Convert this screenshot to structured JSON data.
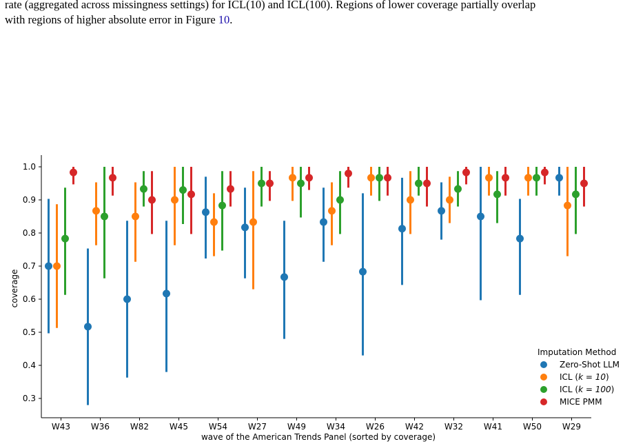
{
  "caption": {
    "line1": "rate (aggregated across missingness settings) for ICL(10) and ICL(100). Regions of lower coverage partially overlap",
    "line2_before": "with regions of higher absolute error in Figure ",
    "figure_ref": "10",
    "line2_after": "."
  },
  "chart_data": {
    "type": "scatter",
    "subtype": "point-with-errorbars",
    "xlabel": "wave of the American Trends Panel (sorted by coverage)",
    "ylabel": "coverage",
    "ylim": [
      0.25,
      1.035
    ],
    "yticks": [
      0.3,
      0.4,
      0.5,
      0.6,
      0.7,
      0.8,
      0.9,
      1.0
    ],
    "ytick_labels": [
      "0.3",
      "0.4",
      "0.5",
      "0.6",
      "0.7",
      "0.8",
      "0.9",
      "1.0"
    ],
    "categories": [
      "W43",
      "W36",
      "W82",
      "W45",
      "W54",
      "W27",
      "W49",
      "W34",
      "W26",
      "W42",
      "W32",
      "W41",
      "W50",
      "W29"
    ],
    "legend": {
      "title": "Imputation Method",
      "position": "lower-right",
      "entries": [
        {
          "label": "Zero-Shot LLM",
          "math": "",
          "after": ""
        },
        {
          "label": "ICL (",
          "math": "k = 10",
          "after": ")"
        },
        {
          "label": "ICL (",
          "math": "k = 100",
          "after": ")"
        },
        {
          "label": "MICE PMM",
          "math": "",
          "after": ""
        }
      ]
    },
    "series": [
      {
        "name": "Zero-Shot LLM",
        "color": "#1f77b4",
        "values": [
          0.7,
          0.517,
          0.6,
          0.617,
          0.863,
          0.817,
          0.667,
          0.833,
          0.683,
          0.813,
          0.867,
          0.85,
          0.783,
          0.967
        ],
        "lower": [
          0.497,
          0.28,
          0.363,
          0.38,
          0.723,
          0.663,
          0.48,
          0.713,
          0.43,
          0.643,
          0.78,
          0.597,
          0.613,
          0.913
        ],
        "upper": [
          0.903,
          0.753,
          0.837,
          0.837,
          0.97,
          0.937,
          0.837,
          0.937,
          0.92,
          0.967,
          0.953,
          1.0,
          0.903,
          1.0
        ]
      },
      {
        "name": "ICL (k = 10)",
        "color": "#ff7f0e",
        "values": [
          0.7,
          0.867,
          0.85,
          0.9,
          0.833,
          0.833,
          0.967,
          0.867,
          0.967,
          0.9,
          0.9,
          0.967,
          0.967,
          0.883
        ],
        "lower": [
          0.513,
          0.763,
          0.713,
          0.763,
          0.73,
          0.63,
          0.897,
          0.763,
          0.913,
          0.797,
          0.83,
          0.913,
          0.913,
          0.73
        ],
        "upper": [
          0.887,
          0.953,
          0.953,
          1.0,
          0.92,
          0.987,
          1.0,
          0.953,
          1.0,
          0.987,
          0.97,
          1.0,
          1.0,
          1.0
        ]
      },
      {
        "name": "ICL (k = 100)",
        "color": "#2ca02c",
        "values": [
          0.783,
          0.85,
          0.933,
          0.93,
          0.883,
          0.95,
          0.95,
          0.9,
          0.967,
          0.95,
          0.933,
          0.917,
          0.967,
          0.917
        ],
        "lower": [
          0.613,
          0.663,
          0.88,
          0.827,
          0.747,
          0.88,
          0.847,
          0.797,
          0.897,
          0.913,
          0.88,
          0.83,
          0.913,
          0.797
        ],
        "upper": [
          0.937,
          1.0,
          0.987,
          1.0,
          0.987,
          1.0,
          1.0,
          0.987,
          1.0,
          1.0,
          0.987,
          0.987,
          1.0,
          1.0
        ]
      },
      {
        "name": "MICE PMM",
        "color": "#d62728",
        "values": [
          0.983,
          0.967,
          0.9,
          0.917,
          0.933,
          0.95,
          0.967,
          0.98,
          0.967,
          0.95,
          0.983,
          0.967,
          0.983,
          0.95
        ],
        "lower": [
          0.947,
          0.913,
          0.797,
          0.797,
          0.88,
          0.897,
          0.93,
          0.937,
          0.913,
          0.88,
          0.947,
          0.913,
          0.947,
          0.88
        ],
        "upper": [
          1.0,
          1.0,
          0.987,
          1.0,
          0.987,
          0.987,
          1.0,
          1.0,
          1.0,
          1.0,
          1.0,
          1.0,
          1.0,
          1.0
        ]
      }
    ]
  }
}
